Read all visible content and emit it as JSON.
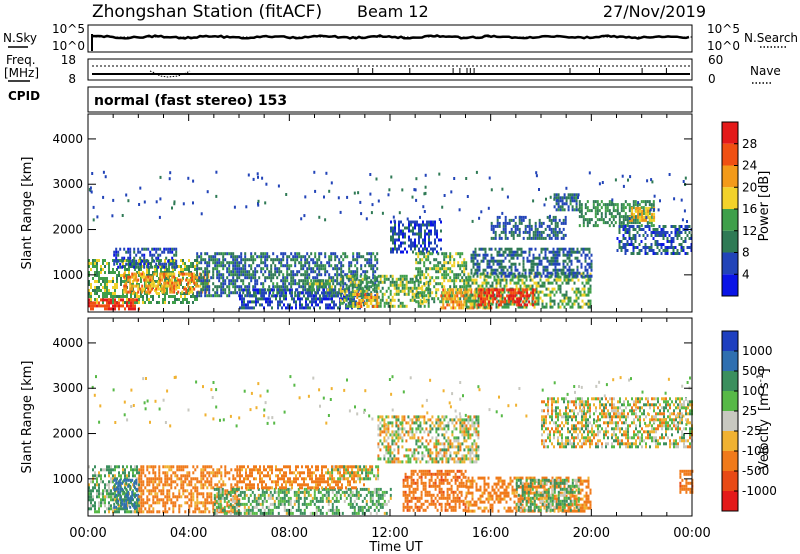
{
  "header": {
    "station": "Zhongshan Station (fitACF)",
    "beam": "Beam 12",
    "date": "27/Nov/2019"
  },
  "strip": {
    "nsky_label": "N.Sky",
    "nsearch_label": "N.Search",
    "nsky_ticks": [
      "10^5",
      "10^0"
    ],
    "nsearch_ticks": [
      "10^5",
      "10^0"
    ],
    "freq_label_1": "Freq.",
    "freq_label_2": "[MHz]",
    "freq_ticks": [
      "18",
      "8"
    ],
    "nave_label": "Nave",
    "nave_ticks": [
      "60",
      "0"
    ],
    "cpid_label": "CPID",
    "cpid_text": "normal (fast stereo) 153"
  },
  "axes": {
    "ylabel": "Slant Range [km]",
    "xlabel": "Time UT",
    "y_ticks": [
      "1000",
      "2000",
      "3000",
      "4000"
    ],
    "x_ticks": [
      "00:00",
      "04:00",
      "08:00",
      "12:00",
      "16:00",
      "20:00",
      "00:00"
    ]
  },
  "colorbars": {
    "power_label": "Power [dB]",
    "power_ticks": [
      "4",
      "8",
      "12",
      "16",
      "20",
      "24",
      "28"
    ],
    "power_colors": [
      "#0a14e6",
      "#2244b8",
      "#2f7a55",
      "#3f9f4a",
      "#f2d22a",
      "#f39a19",
      "#f05012",
      "#e41a1a"
    ],
    "velocity_label_1": "Velocity",
    "velocity_label_2": "[m s",
    "velocity_label_3": "-1",
    "velocity_label_4": "]",
    "velocity_ticks": [
      "1000",
      "500",
      "100",
      "25",
      "-25",
      "-100",
      "-500",
      "-1000"
    ],
    "velocity_colors": [
      "#1e3fbf",
      "#2f6fb0",
      "#3b8f5e",
      "#57b947",
      "#c8c8c0",
      "#f0b232",
      "#f07a1a",
      "#e84a16",
      "#e41a1a"
    ]
  },
  "chart_data": [
    {
      "type": "heatmap",
      "title": "Power",
      "xlabel": "Time UT",
      "ylabel": "Slant Range [km]",
      "xlim_hours": [
        0,
        24
      ],
      "ylim_km": [
        180,
        4550
      ],
      "colorbar": "Power [dB]",
      "colorbar_range_db": [
        0,
        32
      ],
      "patches": [
        {
          "t": [
            0.0,
            4.3
          ],
          "r": [
            400,
            1350
          ],
          "db": 14
        },
        {
          "t": [
            0.0,
            2.0
          ],
          "r": [
            250,
            480
          ],
          "db": 28
        },
        {
          "t": [
            1.0,
            3.5
          ],
          "r": [
            1150,
            1600
          ],
          "db": 6
        },
        {
          "t": [
            1.4,
            4.8
          ],
          "r": [
            620,
            1050
          ],
          "db": 22
        },
        {
          "t": [
            4.3,
            11.5
          ],
          "r": [
            550,
            1500
          ],
          "db": 9
        },
        {
          "t": [
            6.0,
            11.0
          ],
          "r": [
            250,
            700
          ],
          "db": 6
        },
        {
          "t": [
            8.7,
            9.7
          ],
          "r": [
            650,
            900
          ],
          "db": 14
        },
        {
          "t": [
            10.0,
            13.5
          ],
          "r": [
            300,
            1000
          ],
          "db": 14
        },
        {
          "t": [
            10.5,
            11.5
          ],
          "r": [
            300,
            600
          ],
          "db": 22
        },
        {
          "t": [
            12.0,
            14.0
          ],
          "r": [
            1500,
            2200
          ],
          "db": 6
        },
        {
          "t": [
            13.0,
            15.0
          ],
          "r": [
            400,
            1500
          ],
          "db": 14
        },
        {
          "t": [
            14.0,
            16.0
          ],
          "r": [
            300,
            700
          ],
          "db": 22
        },
        {
          "t": [
            15.0,
            20.0
          ],
          "r": [
            280,
            1050
          ],
          "db": 14
        },
        {
          "t": [
            15.5,
            17.8
          ],
          "r": [
            350,
            700
          ],
          "db": 28
        },
        {
          "t": [
            15.2,
            20.0
          ],
          "r": [
            1000,
            1600
          ],
          "db": 8
        },
        {
          "t": [
            16.0,
            19.0
          ],
          "r": [
            1800,
            2300
          ],
          "db": 8
        },
        {
          "t": [
            18.5,
            19.5
          ],
          "r": [
            2450,
            2800
          ],
          "db": 9
        },
        {
          "t": [
            19.5,
            22.5
          ],
          "r": [
            2100,
            2650
          ],
          "db": 12
        },
        {
          "t": [
            21.0,
            24.0
          ],
          "r": [
            1500,
            2100
          ],
          "db": 7
        },
        {
          "t": [
            21.5,
            22.5
          ],
          "r": [
            2200,
            2500
          ],
          "db": 20
        }
      ]
    },
    {
      "type": "heatmap",
      "title": "Velocity",
      "xlabel": "Time UT",
      "ylabel": "Slant Range [km]",
      "xlim_hours": [
        0,
        24
      ],
      "ylim_km": [
        180,
        4550
      ],
      "colorbar": "Velocity [m s-1]",
      "colorbar_range_ms": [
        -1000,
        1000
      ],
      "patches": [
        {
          "t": [
            0.0,
            2.0
          ],
          "r": [
            300,
            1300
          ],
          "v": 100
        },
        {
          "t": [
            1.0,
            2.0
          ],
          "r": [
            400,
            1000
          ],
          "v": 600
        },
        {
          "t": [
            2.0,
            6.0
          ],
          "r": [
            300,
            1300
          ],
          "v": -200
        },
        {
          "t": [
            5.0,
            12.0
          ],
          "r": [
            250,
            800
          ],
          "v": 100
        },
        {
          "t": [
            6.0,
            11.0
          ],
          "r": [
            800,
            1300
          ],
          "v": -200
        },
        {
          "t": [
            9.5,
            11.5
          ],
          "r": [
            1000,
            1300
          ],
          "v": 0
        },
        {
          "t": [
            11.5,
            15.5
          ],
          "r": [
            1400,
            2400
          ],
          "v": 0
        },
        {
          "t": [
            12.5,
            15.0
          ],
          "r": [
            300,
            1200
          ],
          "v": -400
        },
        {
          "t": [
            15.0,
            20.0
          ],
          "r": [
            280,
            1050
          ],
          "v": -200
        },
        {
          "t": [
            17.0,
            19.5
          ],
          "r": [
            300,
            1000
          ],
          "v": 100
        },
        {
          "t": [
            18.0,
            24.0
          ],
          "r": [
            1700,
            2800
          ],
          "v": 0
        },
        {
          "t": [
            23.5,
            24.0
          ],
          "r": [
            700,
            1200
          ],
          "v": -400
        }
      ]
    }
  ]
}
